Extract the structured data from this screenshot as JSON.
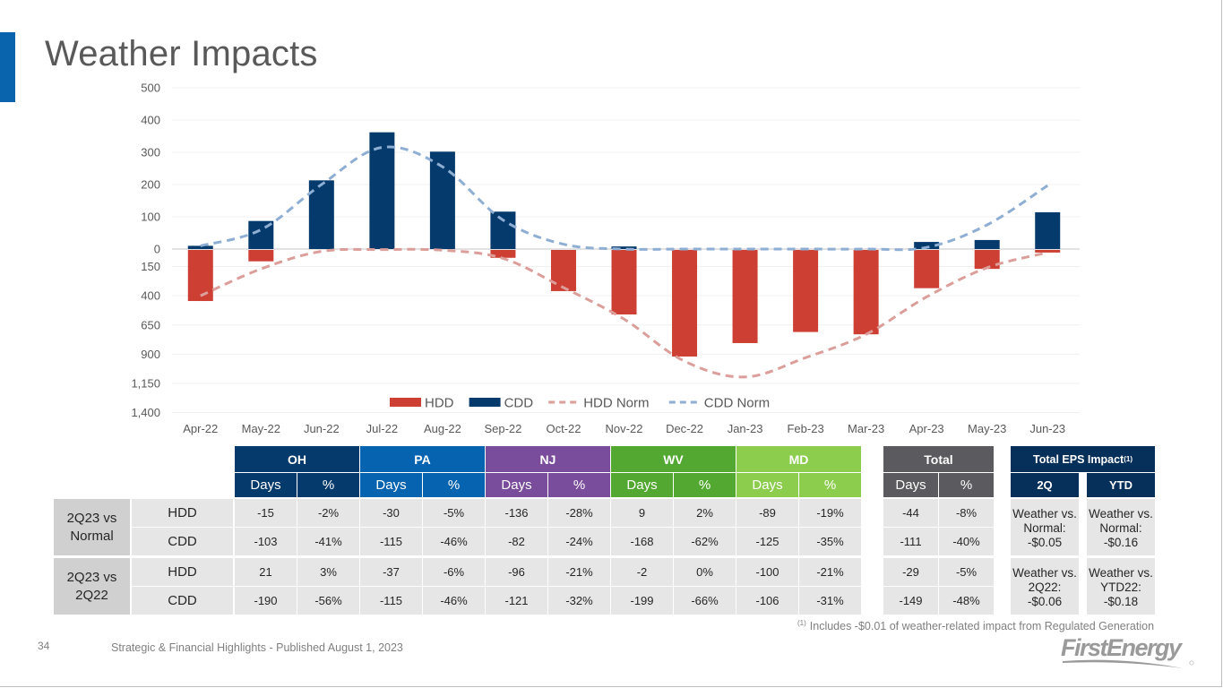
{
  "page": {
    "title": "Weather Impacts",
    "page_number": "34",
    "footer": "Strategic & Financial Highlights - Published August 1, 2023",
    "footnote_marker": "(1)",
    "footnote": "Includes -$0.01 of weather-related impact from Regulated Generation",
    "logo_text": "FirstEnergy",
    "accent_color": "#0a64ad"
  },
  "chart_data": {
    "type": "bar",
    "title": "",
    "xlabel": "",
    "ylabel": "",
    "categories": [
      "Apr-22",
      "May-22",
      "Jun-22",
      "Jul-22",
      "Aug-22",
      "Sep-22",
      "Oct-22",
      "Nov-22",
      "Dec-22",
      "Jan-23",
      "Feb-23",
      "Mar-23",
      "Apr-23",
      "May-23",
      "Jun-23"
    ],
    "upper_axis": {
      "label": "CDD",
      "range": [
        0,
        500
      ],
      "ticks": [
        "500",
        "400",
        "300",
        "200",
        "100",
        "0"
      ]
    },
    "lower_axis": {
      "label": "HDD (plotted downward)",
      "range": [
        0,
        1400
      ],
      "ticks": [
        "150",
        "400",
        "650",
        "900",
        "1,150",
        "1,400"
      ]
    },
    "grid": true,
    "legend_position": "bottom",
    "series": [
      {
        "name": "HDD",
        "kind": "bar",
        "direction": "down",
        "color": "#cc3f32",
        "values": [
          445,
          105,
          0,
          0,
          0,
          75,
          360,
          560,
          920,
          805,
          710,
          730,
          335,
          170,
          30
        ]
      },
      {
        "name": "CDD",
        "kind": "bar",
        "direction": "up",
        "color": "#053a6c",
        "values": [
          10,
          87,
          213,
          362,
          302,
          116,
          0,
          8,
          0,
          0,
          0,
          0,
          22,
          28,
          114
        ]
      },
      {
        "name": "HDD Norm",
        "kind": "line",
        "style": "dashed",
        "direction": "down",
        "color": "#dc9e9a",
        "values": [
          400,
          170,
          20,
          5,
          10,
          80,
          330,
          600,
          960,
          1095,
          930,
          730,
          410,
          160,
          30
        ]
      },
      {
        "name": "CDD Norm",
        "kind": "line",
        "style": "dashed",
        "direction": "up",
        "color": "#8eaed4",
        "values": [
          10,
          60,
          200,
          315,
          255,
          90,
          15,
          0,
          0,
          0,
          0,
          0,
          5,
          75,
          197
        ]
      }
    ]
  },
  "table": {
    "regions": [
      {
        "name": "OH",
        "color": "#053a6c"
      },
      {
        "name": "PA",
        "color": "#0563b0"
      },
      {
        "name": "NJ",
        "color": "#7a4c9c"
      },
      {
        "name": "WV",
        "color": "#52a830"
      },
      {
        "name": "MD",
        "color": "#8ccd4e"
      }
    ],
    "total": {
      "name": "Total",
      "color": "#5a5a5f"
    },
    "sub_headers": [
      "Days",
      "%"
    ],
    "groups": [
      {
        "label": "2Q23 vs Normal",
        "rows": [
          {
            "type": "HDD",
            "regions": [
              [
                "-15",
                "-2%"
              ],
              [
                "-30",
                "-5%"
              ],
              [
                "-136",
                "-28%"
              ],
              [
                "9",
                "2%"
              ],
              [
                "-89",
                "-19%"
              ]
            ],
            "total": [
              "-44",
              "-8%"
            ]
          },
          {
            "type": "CDD",
            "regions": [
              [
                "-103",
                "-41%"
              ],
              [
                "-115",
                "-46%"
              ],
              [
                "-82",
                "-24%"
              ],
              [
                "-168",
                "-62%"
              ],
              [
                "-125",
                "-35%"
              ]
            ],
            "total": [
              "-111",
              "-40%"
            ]
          }
        ]
      },
      {
        "label": "2Q23 vs 2Q22",
        "rows": [
          {
            "type": "HDD",
            "regions": [
              [
                "21",
                "3%"
              ],
              [
                "-37",
                "-6%"
              ],
              [
                "-96",
                "-21%"
              ],
              [
                "-2",
                "0%"
              ],
              [
                "-100",
                "-21%"
              ]
            ],
            "total": [
              "-29",
              "-5%"
            ]
          },
          {
            "type": "CDD",
            "regions": [
              [
                "-190",
                "-56%"
              ],
              [
                "-115",
                "-46%"
              ],
              [
                "-121",
                "-32%"
              ],
              [
                "-199",
                "-66%"
              ],
              [
                "-106",
                "-31%"
              ]
            ],
            "total": [
              "-149",
              "-48%"
            ]
          }
        ]
      }
    ],
    "eps": {
      "title": "Total EPS Impact",
      "title_marker": "(1)",
      "color": "#062f5a",
      "columns": [
        "2Q",
        "YTD"
      ],
      "cells": [
        [
          "Weather vs. Normal: -$0.05",
          "Weather vs. Normal: -$0.16"
        ],
        [
          "Weather vs. 2Q22: -$0.06",
          "Weather vs. YTD22: -$0.18"
        ]
      ],
      "cells_lines": [
        [
          [
            "Weather vs.",
            "Normal:",
            "-$0.05"
          ],
          [
            "Weather vs.",
            "Normal:",
            "-$0.16"
          ]
        ],
        [
          [
            "Weather vs.",
            "2Q22:",
            "-$0.06"
          ],
          [
            "Weather vs.",
            "YTD22:",
            "-$0.18"
          ]
        ]
      ]
    }
  }
}
